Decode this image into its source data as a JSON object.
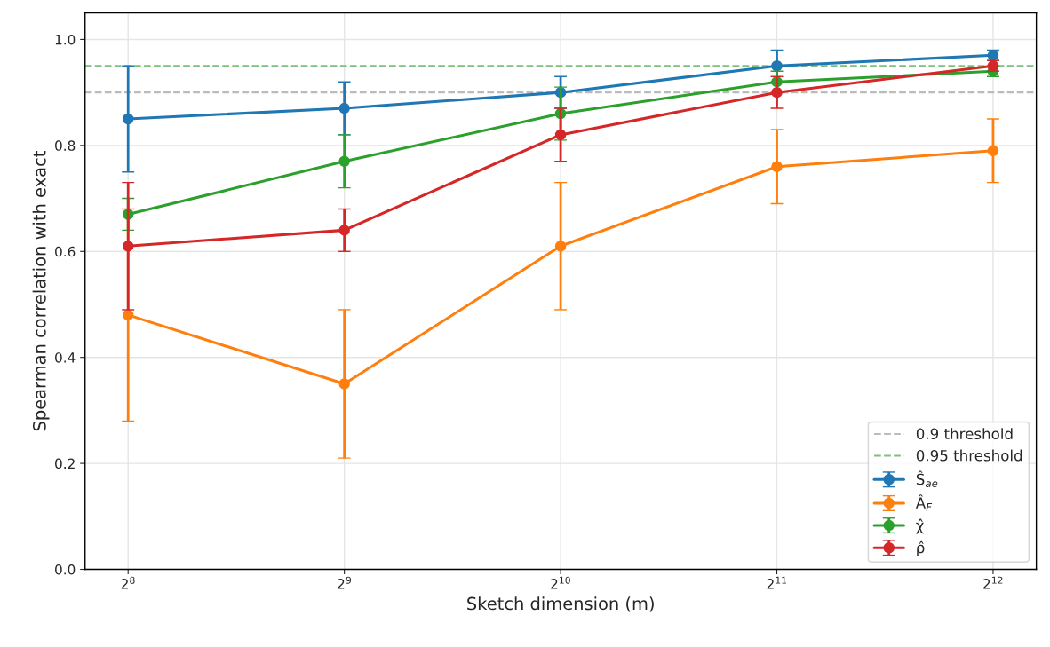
{
  "chart_data": {
    "type": "line",
    "xlabel": "Sketch dimension (m)",
    "ylabel": "Spearman correlation with exact",
    "x": [
      256,
      512,
      1024,
      2048,
      4096
    ],
    "log": "x",
    "marker": "circle",
    "line_style": "solid",
    "grid": true,
    "legend": "bottom right",
    "xlim": [
      223,
      4705
    ],
    "xticks": [
      {
        "value": 256,
        "label": "2$^{8}$"
      },
      {
        "value": 512,
        "label": "2$^{9}$"
      },
      {
        "value": 1024,
        "label": "2$^{10}$"
      },
      {
        "value": 2048,
        "label": "2$^{11}$"
      },
      {
        "value": 4096,
        "label": "2$^{12}$"
      }
    ],
    "ylim": [
      0,
      1.05
    ],
    "yticks": [
      {
        "value": 0,
        "label": "0.0"
      },
      {
        "value": 0.2,
        "label": "0.2"
      },
      {
        "value": 0.4,
        "label": "0.4"
      },
      {
        "value": 0.6,
        "label": "0.6"
      },
      {
        "value": 0.8,
        "label": "0.8"
      },
      {
        "value": 1.0,
        "label": "1.0"
      }
    ],
    "ref_lines": [
      {
        "axis": "y",
        "value": 0.9,
        "label": "0.9 threshold",
        "color": "#bbbbbb",
        "line_style": "dashed"
      },
      {
        "axis": "y",
        "value": 0.95,
        "label": "0.95 threshold",
        "color": "#7fbf7f",
        "line_style": "dashed"
      }
    ],
    "series": [
      {
        "name": "Ŝ$_{ae}$",
        "color": "#1f77b4",
        "values": [
          0.85,
          0.87,
          0.9,
          0.95,
          0.97
        ],
        "errors": [
          0.1,
          0.05,
          0.03,
          0.03,
          0.01
        ]
      },
      {
        "name": "Â$_{F}$",
        "color": "#ff7f0e",
        "values": [
          0.48,
          0.35,
          0.61,
          0.76,
          0.79
        ],
        "errors": [
          0.2,
          0.14,
          0.12,
          0.07,
          0.06
        ]
      },
      {
        "name": "χ̂",
        "color": "#2ca02c",
        "values": [
          0.67,
          0.77,
          0.86,
          0.92,
          0.94
        ],
        "errors": [
          0.03,
          0.05,
          0.05,
          0.02,
          0.01
        ]
      },
      {
        "name": "ρ̂",
        "color": "#d62728",
        "values": [
          0.61,
          0.64,
          0.82,
          0.9,
          0.95
        ],
        "errors": [
          0.12,
          0.04,
          0.05,
          0.03,
          0.01
        ]
      }
    ]
  }
}
